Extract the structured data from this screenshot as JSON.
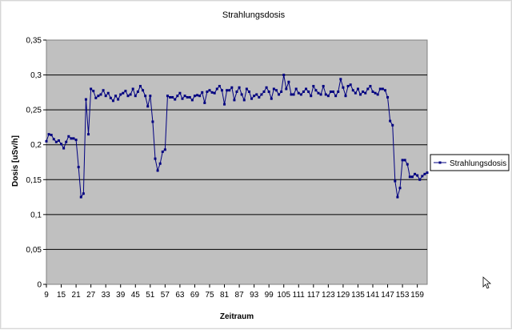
{
  "chart_data": {
    "type": "line",
    "title": "Strahlungsdosis",
    "xlabel": "Zeitraum",
    "ylabel": "Dosis [uSv/h]",
    "ylim": [
      0,
      0.35
    ],
    "y_ticks": [
      "0",
      "0,05",
      "0,1",
      "0,15",
      "0,2",
      "0,25",
      "0,3",
      "0,35"
    ],
    "x_ticks": [
      "9",
      "15",
      "21",
      "27",
      "33",
      "39",
      "45",
      "51",
      "57",
      "63",
      "69",
      "75",
      "81",
      "87",
      "93",
      "99",
      "105",
      "111",
      "117",
      "123",
      "129",
      "135",
      "141",
      "147",
      "153",
      "159"
    ],
    "x_start": 9,
    "x_end": 163,
    "grid": "horizontal",
    "legend": "right",
    "plot_background": "#c0c0c0",
    "series_color": "#000080",
    "series": [
      {
        "name": "Strahlungsdosis",
        "values": [
          0.205,
          0.215,
          0.214,
          0.208,
          0.204,
          0.206,
          0.201,
          0.195,
          0.204,
          0.212,
          0.209,
          0.209,
          0.207,
          0.168,
          0.125,
          0.13,
          0.265,
          0.215,
          0.28,
          0.277,
          0.267,
          0.27,
          0.272,
          0.278,
          0.27,
          0.274,
          0.267,
          0.263,
          0.27,
          0.265,
          0.272,
          0.274,
          0.277,
          0.27,
          0.272,
          0.28,
          0.27,
          0.276,
          0.284,
          0.278,
          0.27,
          0.255,
          0.27,
          0.233,
          0.18,
          0.163,
          0.173,
          0.19,
          0.193,
          0.27,
          0.268,
          0.268,
          0.265,
          0.27,
          0.274,
          0.266,
          0.27,
          0.268,
          0.268,
          0.264,
          0.27,
          0.271,
          0.27,
          0.275,
          0.26,
          0.276,
          0.278,
          0.275,
          0.274,
          0.28,
          0.284,
          0.278,
          0.258,
          0.278,
          0.278,
          0.282,
          0.264,
          0.276,
          0.282,
          0.272,
          0.264,
          0.28,
          0.276,
          0.266,
          0.27,
          0.272,
          0.268,
          0.272,
          0.276,
          0.282,
          0.276,
          0.266,
          0.28,
          0.278,
          0.272,
          0.276,
          0.3,
          0.28,
          0.29,
          0.272,
          0.272,
          0.28,
          0.274,
          0.272,
          0.276,
          0.28,
          0.276,
          0.27,
          0.284,
          0.278,
          0.274,
          0.272,
          0.284,
          0.272,
          0.27,
          0.276,
          0.276,
          0.27,
          0.276,
          0.294,
          0.282,
          0.27,
          0.284,
          0.286,
          0.278,
          0.274,
          0.28,
          0.272,
          0.276,
          0.274,
          0.28,
          0.284,
          0.276,
          0.274,
          0.272,
          0.28,
          0.28,
          0.278,
          0.268,
          0.234,
          0.228,
          0.148,
          0.125,
          0.138,
          0.178,
          0.178,
          0.172,
          0.154,
          0.154,
          0.158,
          0.156,
          0.15,
          0.155,
          0.158,
          0.16
        ]
      }
    ]
  }
}
